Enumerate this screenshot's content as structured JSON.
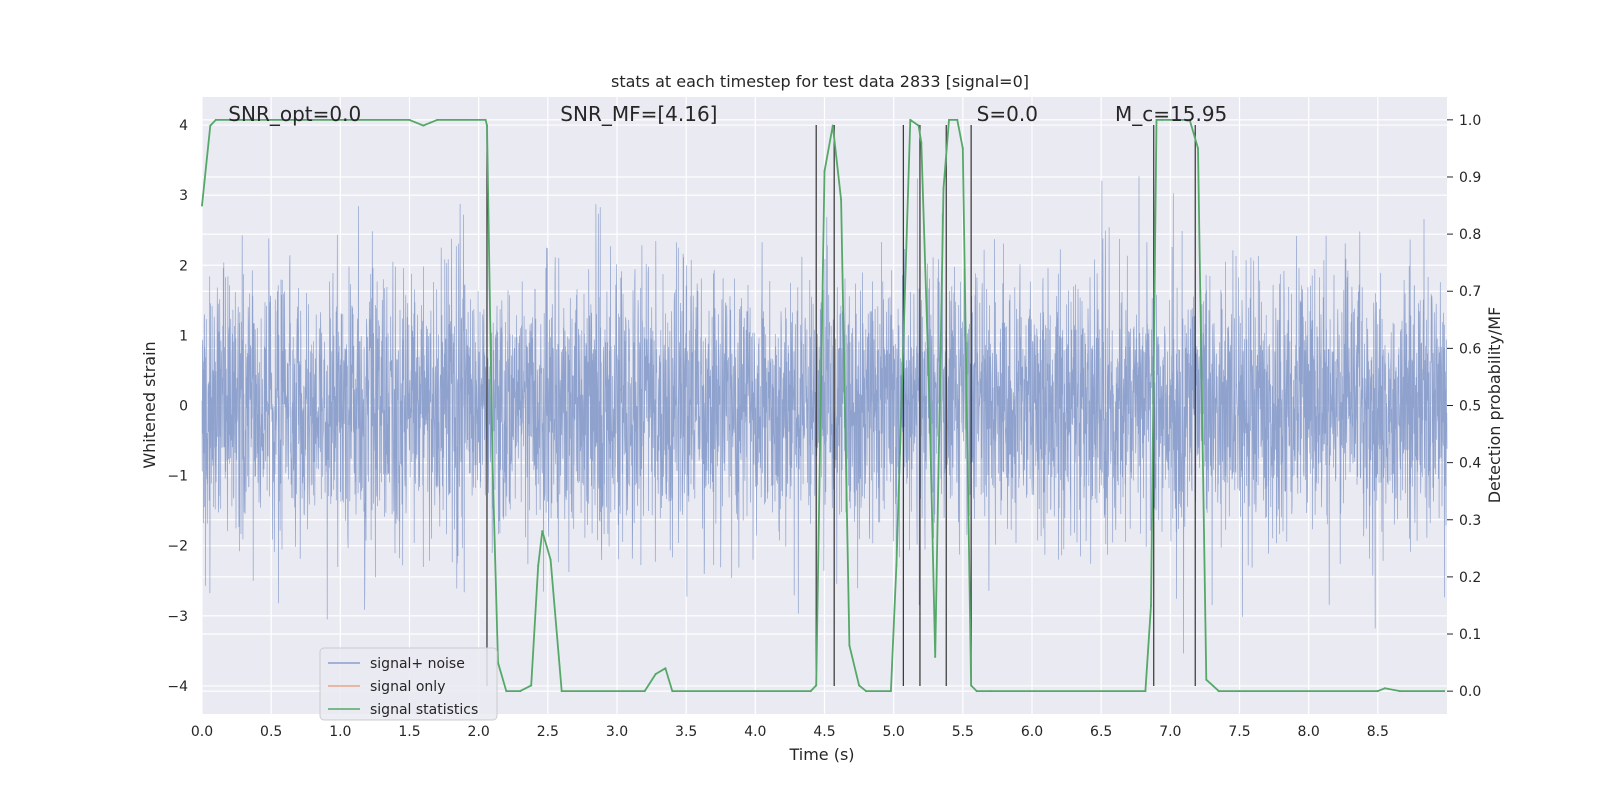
{
  "chart_data": {
    "type": "line",
    "title": "stats at each timestep for test data 2833 [signal=0]",
    "xlabel": "Time (s)",
    "ylabel_left": "Whitened strain",
    "ylabel_right": "Detection probability/MF",
    "xlim": [
      0,
      9
    ],
    "ylim_left": [
      -4.4,
      4.4
    ],
    "ylim_right": [
      -0.04,
      1.04
    ],
    "x_ticks": [
      0.0,
      0.5,
      1.0,
      1.5,
      2.0,
      2.5,
      3.0,
      3.5,
      4.0,
      4.5,
      5.0,
      5.5,
      6.0,
      6.5,
      7.0,
      7.5,
      8.0,
      8.5
    ],
    "x_tick_labels": [
      "0.0",
      "0.5",
      "1.0",
      "1.5",
      "2.0",
      "2.5",
      "3.0",
      "3.5",
      "4.0",
      "4.5",
      "5.0",
      "5.5",
      "6.0",
      "6.5",
      "7.0",
      "7.5",
      "8.0",
      "8.5"
    ],
    "y_left_ticks": [
      -4,
      -3,
      -2,
      -1,
      0,
      1,
      2,
      3,
      4
    ],
    "y_left_tick_labels": [
      "−4",
      "−3",
      "−2",
      "−1",
      "0",
      "1",
      "2",
      "3",
      "4"
    ],
    "y_right_ticks": [
      0.0,
      0.1,
      0.2,
      0.3,
      0.4,
      0.5,
      0.6,
      0.7,
      0.8,
      0.9,
      1.0
    ],
    "y_right_tick_labels": [
      "0.0",
      "0.1",
      "0.2",
      "0.3",
      "0.4",
      "0.5",
      "0.6",
      "0.7",
      "0.8",
      "0.9",
      "1.0"
    ],
    "grid": true,
    "legend_position": "lower-left",
    "annotations": [
      {
        "id": "snr-opt",
        "text": "SNR_opt=0.0",
        "x": 0.19,
        "y": 4.1
      },
      {
        "id": "snr-mf",
        "text": "SNR_MF=[4.16]",
        "x": 2.59,
        "y": 4.1
      },
      {
        "id": "s-stat",
        "text": "S=0.0",
        "x": 5.6,
        "y": 4.1
      },
      {
        "id": "mc",
        "text": "M_c=15.95",
        "x": 6.6,
        "y": 4.1
      }
    ],
    "noise_strain": {
      "fs": 4096,
      "duration": 9,
      "envelope": "Gaussian whitened noise, std ~1.0, peaks reaching about +3.7 / -4.0"
    },
    "series": [
      {
        "name": "signal+ noise",
        "color": "#8a9ecb",
        "kind": "strain"
      },
      {
        "name": "signal only",
        "color": "#e8a88a",
        "kind": "strain"
      },
      {
        "name": "signal statistics",
        "color": "#55a868",
        "axis": "right",
        "x": [
          0.0,
          0.06,
          0.1,
          0.2,
          1.5,
          1.6,
          1.65,
          1.7,
          2.05,
          2.06,
          2.1,
          2.14,
          2.2,
          2.3,
          2.38,
          2.43,
          2.46,
          2.52,
          2.6,
          3.2,
          3.28,
          3.35,
          3.4,
          4.4,
          4.44,
          4.5,
          4.56,
          4.62,
          4.68,
          4.75,
          4.8,
          4.98,
          5.02,
          5.12,
          5.18,
          5.2,
          5.26,
          5.3,
          5.36,
          5.4,
          5.46,
          5.5,
          5.56,
          5.6,
          5.7,
          6.82,
          6.86,
          6.9,
          6.94,
          7.0,
          7.14,
          7.2,
          7.26,
          7.35,
          7.5,
          8.5,
          8.55,
          8.66,
          8.98
        ],
        "y": [
          0.85,
          0.99,
          1.0,
          1.0,
          1.0,
          0.99,
          0.995,
          1.0,
          1.0,
          0.99,
          0.4,
          0.05,
          0.0,
          0.0,
          0.01,
          0.22,
          0.28,
          0.23,
          0.0,
          0.0,
          0.03,
          0.04,
          0.0,
          0.0,
          0.01,
          0.91,
          0.99,
          0.86,
          0.08,
          0.01,
          0.0,
          0.0,
          0.22,
          1.0,
          0.99,
          0.96,
          0.5,
          0.06,
          0.88,
          1.0,
          1.0,
          0.95,
          0.01,
          0.0,
          0.0,
          0.0,
          0.15,
          1.0,
          1.0,
          1.0,
          1.0,
          0.95,
          0.02,
          0.0,
          0.0,
          0.0,
          0.005,
          0.0,
          0.0
        ]
      }
    ],
    "vertical_lines": [
      2.06,
      4.44,
      4.57,
      5.07,
      5.19,
      5.38,
      5.56,
      6.88,
      7.18
    ],
    "vertical_line_color": "#333333"
  }
}
